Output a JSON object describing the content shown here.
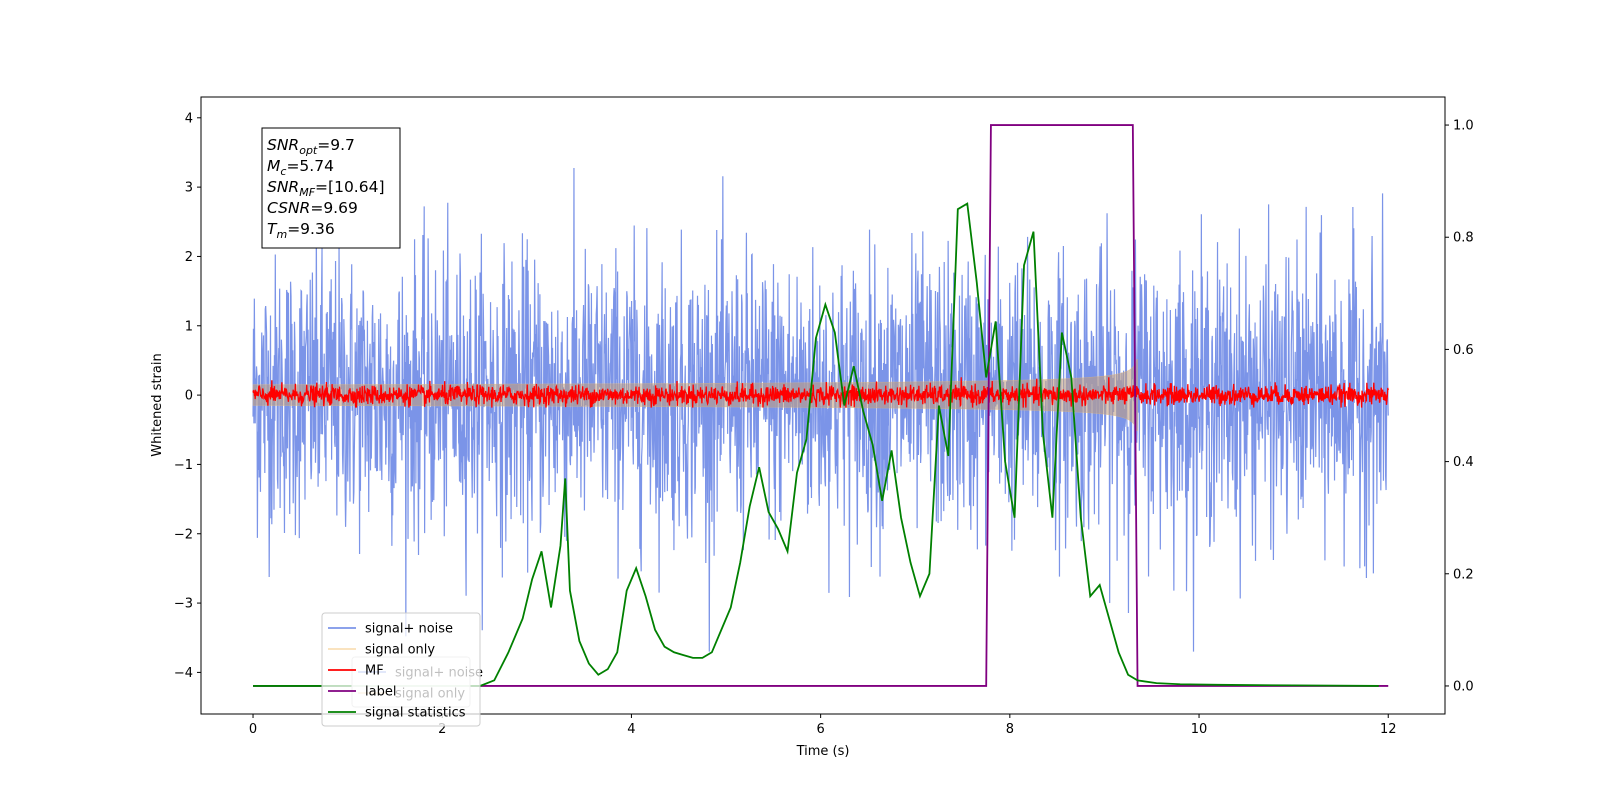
{
  "chart_data": {
    "type": "line",
    "xlabel": "Time (s)",
    "ylabel": "Whitened strain",
    "xlim": [
      -0.55,
      12.6
    ],
    "ylim": [
      -4.6,
      4.3
    ],
    "ylim_right": [
      -0.05,
      1.05
    ],
    "x_ticks": [
      0,
      2,
      4,
      6,
      8,
      10,
      12
    ],
    "y_ticks": [
      -4,
      -3,
      -2,
      -1,
      0,
      1,
      2,
      3,
      4
    ],
    "y_ticks_right": [
      0.0,
      0.2,
      0.4,
      0.6,
      0.8,
      1.0
    ],
    "x_tick_labels": [
      "0",
      "2",
      "4",
      "6",
      "8",
      "10",
      "12"
    ],
    "y_tick_labels": [
      "−4",
      "−3",
      "−2",
      "−1",
      "0",
      "1",
      "2",
      "3",
      "4"
    ],
    "y_tick_labels_right": [
      "0.0",
      "0.2",
      "0.4",
      "0.6",
      "0.8",
      "1.0"
    ],
    "grid": false,
    "legend_placement": "lower-left",
    "info_box": {
      "lines": [
        {
          "label": "SNR",
          "sub": "opt",
          "value": "=9.7"
        },
        {
          "label": "M",
          "sub": "c",
          "value": "=5.74"
        },
        {
          "label": "SNR",
          "sub": "MF",
          "value": "=[10.64]"
        },
        {
          "label": "CSNR",
          "sub": "",
          "value": "=9.69"
        },
        {
          "label": "T",
          "sub": "m",
          "value": "=9.36"
        }
      ]
    },
    "series": [
      {
        "name": "signal+ noise",
        "color": "#7b94e8",
        "axis": "left",
        "x_range": [
          0,
          12
        ],
        "amplitude_typical": 1.0,
        "amplitude_peak": 3.9
      },
      {
        "name": "signal only",
        "color": "#f5c271",
        "axis": "left",
        "x_range": [
          0,
          9.35
        ],
        "envelope_peak": 0.7,
        "envelope_peak_time": 9.33
      },
      {
        "name": "MF",
        "color": "#ff0000",
        "axis": "left",
        "x_range": [
          0,
          12
        ],
        "amplitude_typical": 0.12
      },
      {
        "name": "label",
        "color": "#800080",
        "axis": "right",
        "x": [
          0,
          7.75,
          7.8,
          9.3,
          9.35,
          12
        ],
        "y": [
          0,
          0,
          1,
          1,
          0,
          0
        ]
      },
      {
        "name": "signal statistics",
        "color": "#008000",
        "axis": "right",
        "x": [
          0,
          2.4,
          2.55,
          2.7,
          2.85,
          2.95,
          3.05,
          3.15,
          3.25,
          3.3,
          3.35,
          3.45,
          3.55,
          3.65,
          3.75,
          3.85,
          3.95,
          4.05,
          4.15,
          4.25,
          4.35,
          4.45,
          4.55,
          4.65,
          4.75,
          4.85,
          4.95,
          5.05,
          5.15,
          5.25,
          5.35,
          5.45,
          5.55,
          5.65,
          5.75,
          5.85,
          5.95,
          6.05,
          6.15,
          6.25,
          6.35,
          6.45,
          6.55,
          6.65,
          6.75,
          6.85,
          6.95,
          7.05,
          7.15,
          7.25,
          7.35,
          7.45,
          7.55,
          7.65,
          7.75,
          7.85,
          7.95,
          8.05,
          8.15,
          8.25,
          8.35,
          8.45,
          8.55,
          8.65,
          8.75,
          8.85,
          8.95,
          9.05,
          9.15,
          9.25,
          9.35,
          9.55,
          9.8,
          10.2,
          11.0,
          11.9
        ],
        "y": [
          0,
          0.0,
          0.01,
          0.06,
          0.12,
          0.19,
          0.24,
          0.14,
          0.25,
          0.37,
          0.17,
          0.08,
          0.04,
          0.02,
          0.03,
          0.06,
          0.17,
          0.21,
          0.16,
          0.1,
          0.07,
          0.06,
          0.055,
          0.05,
          0.05,
          0.06,
          0.1,
          0.14,
          0.22,
          0.32,
          0.39,
          0.31,
          0.28,
          0.24,
          0.38,
          0.44,
          0.62,
          0.68,
          0.63,
          0.5,
          0.57,
          0.49,
          0.43,
          0.33,
          0.42,
          0.3,
          0.22,
          0.16,
          0.2,
          0.5,
          0.41,
          0.85,
          0.86,
          0.72,
          0.55,
          0.65,
          0.4,
          0.3,
          0.75,
          0.81,
          0.45,
          0.3,
          0.63,
          0.55,
          0.3,
          0.16,
          0.18,
          0.12,
          0.06,
          0.02,
          0.01,
          0.005,
          0.003,
          0.002,
          0.001,
          0.0
        ]
      }
    ]
  }
}
